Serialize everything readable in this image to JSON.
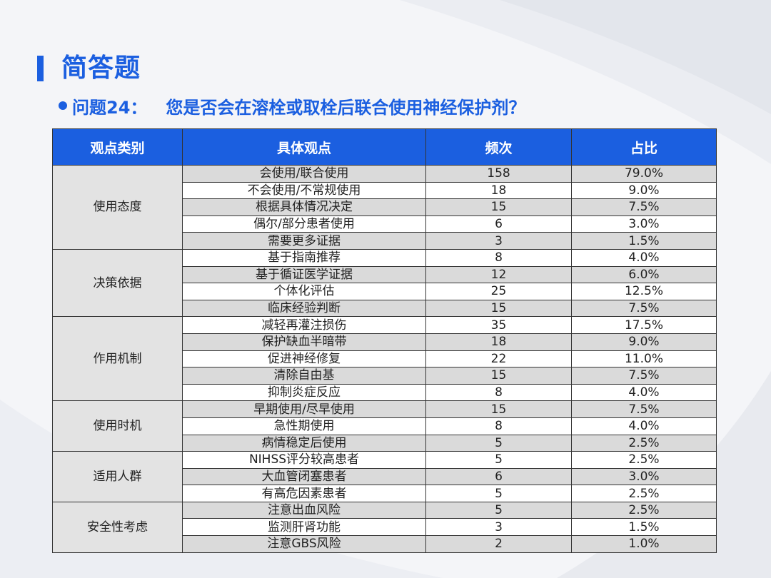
{
  "title": "简答题",
  "question": {
    "number": "问题24：",
    "text": "您是否会在溶栓或取栓后联合使用神经保护剂？"
  },
  "table": {
    "headers": [
      "观点类别",
      "具体观点",
      "频次",
      "占比"
    ],
    "groups": [
      {
        "category": "使用态度",
        "rows": [
          {
            "view": "会使用/联合使用",
            "count": "158",
            "pct": "79.0%"
          },
          {
            "view": "不会使用/不常规使用",
            "count": "18",
            "pct": "9.0%"
          },
          {
            "view": "根据具体情况决定",
            "count": "15",
            "pct": "7.5%"
          },
          {
            "view": "偶尔/部分患者使用",
            "count": "6",
            "pct": "3.0%"
          },
          {
            "view": "需要更多证据",
            "count": "3",
            "pct": "1.5%"
          }
        ]
      },
      {
        "category": "决策依据",
        "rows": [
          {
            "view": "基于指南推荐",
            "count": "8",
            "pct": "4.0%"
          },
          {
            "view": "基于循证医学证据",
            "count": "12",
            "pct": "6.0%"
          },
          {
            "view": "个体化评估",
            "count": "25",
            "pct": "12.5%"
          },
          {
            "view": "临床经验判断",
            "count": "15",
            "pct": "7.5%"
          }
        ]
      },
      {
        "category": "作用机制",
        "rows": [
          {
            "view": "减轻再灌注损伤",
            "count": "35",
            "pct": "17.5%"
          },
          {
            "view": "保护缺血半暗带",
            "count": "18",
            "pct": "9.0%"
          },
          {
            "view": "促进神经修复",
            "count": "22",
            "pct": "11.0%"
          },
          {
            "view": "清除自由基",
            "count": "15",
            "pct": "7.5%"
          },
          {
            "view": "抑制炎症反应",
            "count": "8",
            "pct": "4.0%"
          }
        ]
      },
      {
        "category": "使用时机",
        "rows": [
          {
            "view": "早期使用/尽早使用",
            "count": "15",
            "pct": "7.5%"
          },
          {
            "view": "急性期使用",
            "count": "8",
            "pct": "4.0%"
          },
          {
            "view": "病情稳定后使用",
            "count": "5",
            "pct": "2.5%"
          }
        ]
      },
      {
        "category": "适用人群",
        "rows": [
          {
            "view": "NIHSS评分较高患者",
            "count": "5",
            "pct": "2.5%"
          },
          {
            "view": "大血管闭塞患者",
            "count": "6",
            "pct": "3.0%"
          },
          {
            "view": "有高危因素患者",
            "count": "5",
            "pct": "2.5%"
          }
        ]
      },
      {
        "category": "安全性考虑",
        "rows": [
          {
            "view": "注意出血风险",
            "count": "5",
            "pct": "2.5%"
          },
          {
            "view": "监测肝肾功能",
            "count": "3",
            "pct": "1.5%"
          },
          {
            "view": "注意GBS风险",
            "count": "2",
            "pct": "1.0%"
          }
        ]
      }
    ]
  },
  "colors": {
    "accent": "#1b5fe0",
    "row_shaded": "#dadada",
    "row_plain": "#ffffff",
    "category_bg": "#e3e3e3"
  }
}
